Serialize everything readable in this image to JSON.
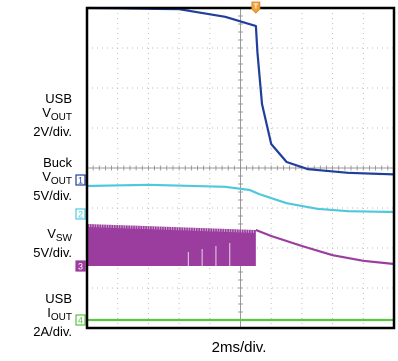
{
  "chart_data": {
    "type": "line",
    "grid": true,
    "timebase": "2ms/div.",
    "x_divisions": 10,
    "y_divisions": 8,
    "trigger_marker": "T",
    "trigger_x_div": 5.5,
    "channels": [
      {
        "id": "1",
        "name_main": "USB",
        "name_var": "V",
        "name_sub": "OUT",
        "scale": "2V/div.",
        "color": "#1f3f9a",
        "ground_div": 3.7,
        "points": [
          [
            0,
            8.0
          ],
          [
            3.0,
            7.97
          ],
          [
            4.5,
            7.78
          ],
          [
            5.5,
            7.55
          ],
          [
            5.55,
            6.9
          ],
          [
            5.7,
            5.6
          ],
          [
            6.0,
            4.6
          ],
          [
            6.5,
            4.15
          ],
          [
            7.2,
            3.97
          ],
          [
            8.5,
            3.88
          ],
          [
            10,
            3.84
          ]
        ]
      },
      {
        "id": "2",
        "name_main": "Buck",
        "name_var": "V",
        "name_sub": "OUT",
        "scale": "5V/div.",
        "color": "#4fc8dc",
        "ground_div": 2.85,
        "points": [
          [
            0,
            3.55
          ],
          [
            2.0,
            3.58
          ],
          [
            4.5,
            3.53
          ],
          [
            5.3,
            3.45
          ],
          [
            5.6,
            3.35
          ],
          [
            6.5,
            3.12
          ],
          [
            7.5,
            2.98
          ],
          [
            8.5,
            2.92
          ],
          [
            10,
            2.9
          ]
        ]
      },
      {
        "id": "3",
        "name_main": "",
        "name_var": "V",
        "name_sub": "SW",
        "scale": "5V/div.",
        "color": "#9b3d9e",
        "ground_div": 1.55,
        "switching_until_div": 5.5,
        "envelope_top": [
          [
            0,
            2.6
          ],
          [
            5.5,
            2.45
          ]
        ],
        "points": [
          [
            5.5,
            2.45
          ],
          [
            6.0,
            2.3
          ],
          [
            7.0,
            2.05
          ],
          [
            8.0,
            1.82
          ],
          [
            9.0,
            1.68
          ],
          [
            10,
            1.6
          ]
        ]
      },
      {
        "id": "4",
        "name_main": "USB",
        "name_var": "I",
        "name_sub": "OUT",
        "scale": "2A/div.",
        "color": "#5bc24a",
        "ground_div": 0.2,
        "points": [
          [
            0,
            0.2
          ],
          [
            10,
            0.2
          ]
        ]
      }
    ]
  }
}
